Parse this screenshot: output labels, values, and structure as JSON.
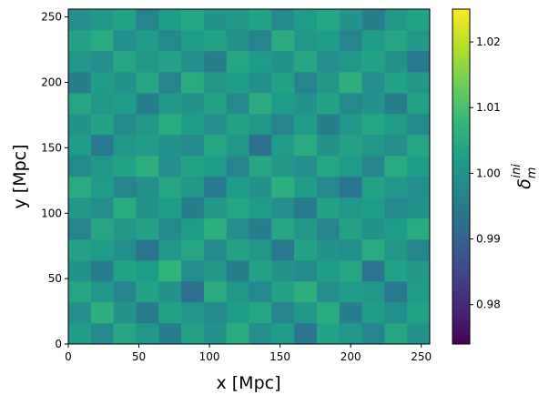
{
  "chart_data": {
    "type": "heatmap",
    "xlabel": "x [Mpc]",
    "ylabel": "y [Mpc]",
    "colorbar_label": {
      "symbol": "δ",
      "sub": "m",
      "sup": "ini"
    },
    "colormap": "viridis",
    "xlim": [
      0,
      256
    ],
    "ylim": [
      0,
      256
    ],
    "xticks": [
      0,
      50,
      100,
      150,
      200,
      250
    ],
    "yticks": [
      0,
      50,
      100,
      150,
      200,
      250
    ],
    "clim": [
      0.974,
      1.025
    ],
    "cticks": [
      {
        "value": 0.98,
        "label": "0.98"
      },
      {
        "value": 0.99,
        "label": "0.99"
      },
      {
        "value": 1.0,
        "label": "1.00"
      },
      {
        "value": 1.01,
        "label": "1.01"
      },
      {
        "value": 1.02,
        "label": "1.02"
      }
    ],
    "z": [
      [
        1.002,
        0.998,
        1.004,
        1.001,
        0.996,
        1.003,
        1.0,
        1.005,
        0.999,
        1.002,
        0.994,
        1.003,
        1.001,
        0.997,
        1.004,
        1.0
      ],
      [
        0.999,
        1.006,
        1.0,
        0.995,
        1.003,
        1.001,
        0.998,
        1.002,
        1.004,
        0.997,
        1.001,
        1.005,
        0.996,
        1.002,
        0.999,
        1.003
      ],
      [
        1.004,
        1.001,
        0.997,
        1.003,
        1.0,
        0.993,
        1.005,
        1.001,
        0.998,
        1.003,
        1.006,
        0.999,
        1.002,
        1.001,
        0.995,
        1.002
      ],
      [
        1.0,
        0.996,
        1.003,
        1.002,
        1.007,
        0.999,
        1.001,
        0.996,
        1.003,
        1.0,
        0.998,
        1.002,
        1.004,
        0.994,
        1.003,
        1.001
      ],
      [
        1.003,
        1.002,
        0.999,
        0.994,
        1.001,
        1.004,
        0.998,
        1.003,
        1.001,
        0.995,
        1.003,
        1.0,
        0.999,
        1.005,
        1.001,
        0.997
      ],
      [
        0.997,
        1.004,
        1.001,
        1.003,
        0.998,
        1.002,
        1.006,
        0.999,
        0.996,
        1.004,
        1.001,
        0.997,
        1.003,
        1.0,
        1.002,
        1.005
      ],
      [
        1.001,
        0.999,
        1.005,
        1.0,
        1.002,
        0.996,
        1.001,
        1.004,
        1.002,
        0.999,
        0.995,
        1.003,
        1.001,
        1.002,
        0.998,
        1.0
      ],
      [
        1.005,
        1.002,
        0.997,
        0.999,
        1.004,
        1.001,
        0.995,
        1.002,
        1.0,
        1.006,
        1.002,
        0.998,
        0.994,
        1.003,
        1.001,
        0.999
      ],
      [
        0.998,
        1.001,
        1.003,
        1.006,
        0.999,
        1.003,
        1.002,
        0.997,
        1.004,
        1.001,
        0.999,
        1.004,
        1.002,
        0.997,
        1.005,
        1.002
      ],
      [
        1.002,
        0.995,
        1.001,
        1.002,
        1.0,
        0.998,
        1.004,
        1.001,
        0.993,
        1.002,
        1.005,
        1.0,
        1.003,
        1.001,
        0.999,
        1.004
      ],
      [
        1.0,
        1.003,
        0.998,
        1.001,
        1.005,
        1.002,
        0.999,
        1.003,
        1.001,
        0.997,
        1.002,
        0.996,
        1.001,
        1.004,
        1.002,
        0.998
      ],
      [
        1.004,
        1.001,
        1.002,
        0.996,
        1.001,
        1.0,
        1.003,
        0.998,
        1.005,
        1.002,
        1.0,
        1.003,
        0.998,
        1.0,
        0.996,
        1.003
      ],
      [
        0.996,
        1.002,
        1.0,
        1.004,
        0.997,
        1.005,
        1.001,
        1.002,
        0.999,
        1.003,
        0.997,
        1.001,
        1.006,
        0.999,
        1.003,
        1.001
      ],
      [
        1.001,
        0.999,
        1.004,
        1.001,
        1.003,
        0.999,
        0.996,
        1.004,
        1.002,
        1.0,
        1.004,
        0.999,
        1.001,
        1.003,
        1.0,
        0.995
      ],
      [
        1.003,
        1.005,
        0.999,
        1.002,
        0.998,
        1.002,
        1.003,
        1.0,
        0.997,
        1.005,
        1.001,
        1.002,
        0.997,
        1.002,
        1.004,
        1.001
      ],
      [
        0.999,
        1.001,
        1.003,
        0.997,
        1.002,
        1.004,
        1.0,
        1.001,
        1.003,
        0.998,
        1.002,
        1.004,
        1.0,
        0.996,
        1.001,
        1.003
      ]
    ]
  }
}
